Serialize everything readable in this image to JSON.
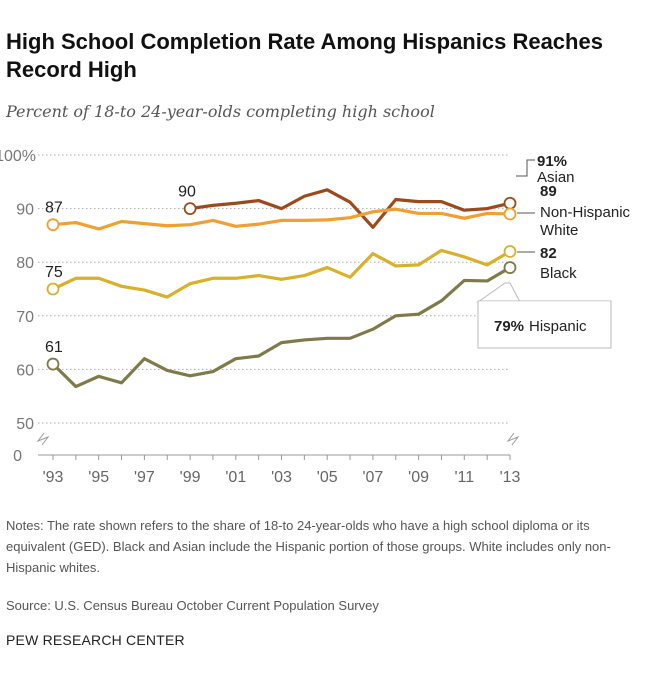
{
  "title": "High School Completion Rate Among Hispanics Reaches Record High",
  "subtitle": "Percent of 18-to 24-year-olds completing  high school",
  "notes": "Notes: The rate shown refers to the share of 18-to 24-year-olds who have a high school diploma or its equivalent (GED).  Black and Asian include the Hispanic portion of those groups. White includes only non-Hispanic whites.",
  "source": "Source: U.S. Census Bureau October Current Population Survey",
  "brand": "PEW RESEARCH CENTER",
  "chart_data": {
    "type": "line",
    "ylim": [
      0,
      100
    ],
    "axis_break": "between 0 and 50",
    "grid": true,
    "y_ticks": [
      "100%",
      "90",
      "80",
      "70",
      "60",
      "50",
      "0"
    ],
    "y_tick_values": [
      100,
      90,
      80,
      70,
      60,
      50,
      0
    ],
    "x": [
      1993,
      1994,
      1995,
      1996,
      1997,
      1998,
      1999,
      2000,
      2001,
      2002,
      2003,
      2004,
      2005,
      2006,
      2007,
      2008,
      2009,
      2010,
      2011,
      2012,
      2013
    ],
    "x_tick_labels": [
      "'93",
      "'95",
      "'97",
      "'99",
      "'01",
      "'03",
      "'05",
      "'07",
      "'09",
      "'11",
      "'13"
    ],
    "series": [
      {
        "name": "Asian",
        "color": "#9c4a1c",
        "start_label": "90",
        "end_label": "91%",
        "values": [
          null,
          null,
          null,
          null,
          null,
          null,
          90,
          90.6,
          91,
          91.5,
          90,
          92.3,
          93.5,
          91.2,
          86.5,
          91.7,
          91.3,
          91.3,
          89.7,
          90,
          91
        ]
      },
      {
        "name": "Non-Hispanic White",
        "color": "#eea032",
        "start_label": "87",
        "end_label": "89",
        "values": [
          87,
          87.4,
          86.2,
          87.6,
          87.2,
          86.8,
          87,
          87.8,
          86.7,
          87.1,
          87.8,
          87.8,
          87.9,
          88.3,
          89.4,
          89.9,
          89.1,
          89.1,
          88.2,
          89.1,
          89
        ]
      },
      {
        "name": "Black",
        "color": "#d8b02a",
        "start_label": "75",
        "end_label": "82",
        "values": [
          75,
          77,
          77,
          75.5,
          74.8,
          73.5,
          76,
          77,
          77,
          77.5,
          76.8,
          77.5,
          79,
          77.2,
          81.6,
          79.3,
          79.5,
          82.2,
          81,
          79.5,
          82
        ]
      },
      {
        "name": "Hispanic",
        "color": "#7f7a4a",
        "start_label": "61",
        "end_label": "79%",
        "values": [
          61,
          56.8,
          58.7,
          57.5,
          62,
          59.8,
          58.8,
          59.6,
          62,
          62.5,
          65,
          65.5,
          65.8,
          65.8,
          67.5,
          70,
          70.3,
          72.8,
          76.6,
          76.5,
          79
        ]
      }
    ]
  }
}
